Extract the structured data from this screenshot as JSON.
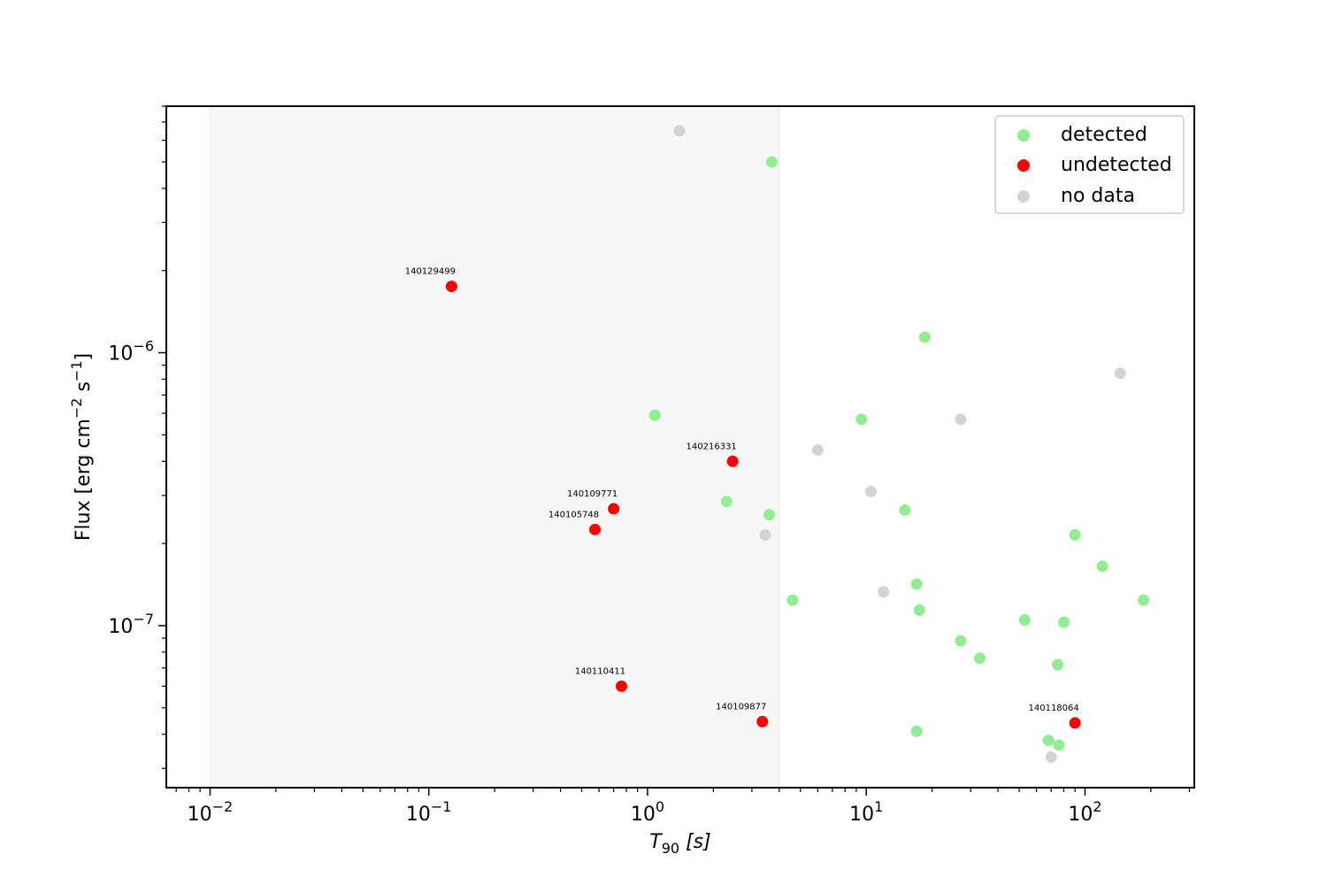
{
  "chart_data": {
    "type": "scatter",
    "xscale": "log",
    "yscale": "log",
    "xlim": [
      0.00631,
      316
    ],
    "ylim": [
      2.55e-08,
      8e-06
    ],
    "shaded_region": {
      "x": [
        0.01,
        4.0
      ]
    },
    "xlabel": "T",
    "xlabel_sub": "90",
    "xlabel_unit": "[s]",
    "ylabel": "Flux [erg cm",
    "ylabel_exp1": "−2",
    "ylabel_mid": " s",
    "ylabel_exp2": "−1",
    "ylabel_end": "]",
    "xticks": [
      {
        "value": 0.01,
        "base": "10",
        "exp": "−2"
      },
      {
        "value": 0.1,
        "base": "10",
        "exp": "−1"
      },
      {
        "value": 1,
        "base": "10",
        "exp": "0"
      },
      {
        "value": 10,
        "base": "10",
        "exp": "1"
      },
      {
        "value": 100,
        "base": "10",
        "exp": "2"
      }
    ],
    "yticks": [
      {
        "value": 1e-07,
        "base": "10",
        "exp": "−7"
      },
      {
        "value": 1e-06,
        "base": "10",
        "exp": "−6"
      }
    ],
    "legend_position": "top-right",
    "series": [
      {
        "name": "detected",
        "color": "#90ee90",
        "points": [
          [
            3.7,
            5e-06
          ],
          [
            18.5,
            1.14e-06
          ],
          [
            1.08,
            5.9e-07
          ],
          [
            9.5,
            5.7e-07
          ],
          [
            2.3,
            2.85e-07
          ],
          [
            3.6,
            2.55e-07
          ],
          [
            15.0,
            2.65e-07
          ],
          [
            90.0,
            2.15e-07
          ],
          [
            120.0,
            1.65e-07
          ],
          [
            17.0,
            1.42e-07
          ],
          [
            4.6,
            1.24e-07
          ],
          [
            185.0,
            1.24e-07
          ],
          [
            17.5,
            1.14e-07
          ],
          [
            53.0,
            1.05e-07
          ],
          [
            80.0,
            1.03e-07
          ],
          [
            27.0,
            8.8e-08
          ],
          [
            33.0,
            7.6e-08
          ],
          [
            75.0,
            7.2e-08
          ],
          [
            17.0,
            4.1e-08
          ],
          [
            68.0,
            3.8e-08
          ],
          [
            76.0,
            3.65e-08
          ]
        ]
      },
      {
        "name": "undetected",
        "color": "#ff0000",
        "points": [
          [
            0.127,
            1.75e-06
          ],
          [
            2.45,
            4e-07
          ],
          [
            0.7,
            2.68e-07
          ],
          [
            0.575,
            2.25e-07
          ],
          [
            0.76,
            6e-08
          ],
          [
            3.35,
            4.45e-08
          ],
          [
            90.0,
            4.4e-08
          ]
        ],
        "labels": [
          "140129499",
          "140216331",
          "140109771",
          "140105748",
          "140110411",
          "140109877",
          "140118064"
        ]
      },
      {
        "name": "no data",
        "color": "#d3d3d3",
        "points": [
          [
            1.4,
            6.5e-06
          ],
          [
            145.0,
            8.4e-07
          ],
          [
            27.0,
            5.7e-07
          ],
          [
            6.0,
            4.4e-07
          ],
          [
            10.5,
            3.1e-07
          ],
          [
            3.45,
            2.15e-07
          ],
          [
            12.0,
            1.33e-07
          ],
          [
            70.0,
            3.3e-08
          ]
        ]
      }
    ]
  }
}
